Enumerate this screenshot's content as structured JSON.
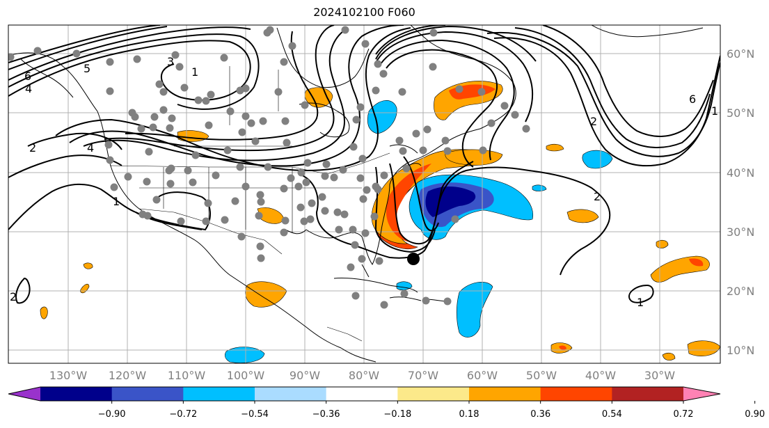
{
  "title": "2024102100 F060",
  "map": {
    "lon_labels": [
      "130°W",
      "120°W",
      "110°W",
      "100°W",
      "90°W",
      "80°W",
      "70°W",
      "60°W",
      "50°W",
      "40°W",
      "30°W"
    ],
    "lat_labels": [
      "60°N",
      "50°N",
      "40°N",
      "30°N",
      "20°N",
      "10°N"
    ],
    "contour_labels": [
      "6",
      "4",
      "5",
      "3",
      "1",
      "2",
      "4",
      "2",
      "1",
      "6",
      "2",
      "1",
      "2",
      "1"
    ],
    "storm_marker": "black-dot",
    "stations": "gray-dots"
  },
  "colorbar": {
    "ticks": [
      "−0.90",
      "−0.72",
      "−0.54",
      "−0.36",
      "−0.18",
      "0.18",
      "0.36",
      "0.54",
      "0.72",
      "0.90"
    ],
    "colors": [
      "#9932cc",
      "#00008b",
      "#3a54c8",
      "#00bfff",
      "#aadcff",
      "#ffffff",
      "#fce98a",
      "#ffa500",
      "#ff4500",
      "#b22222",
      "#ff82b4"
    ]
  }
}
